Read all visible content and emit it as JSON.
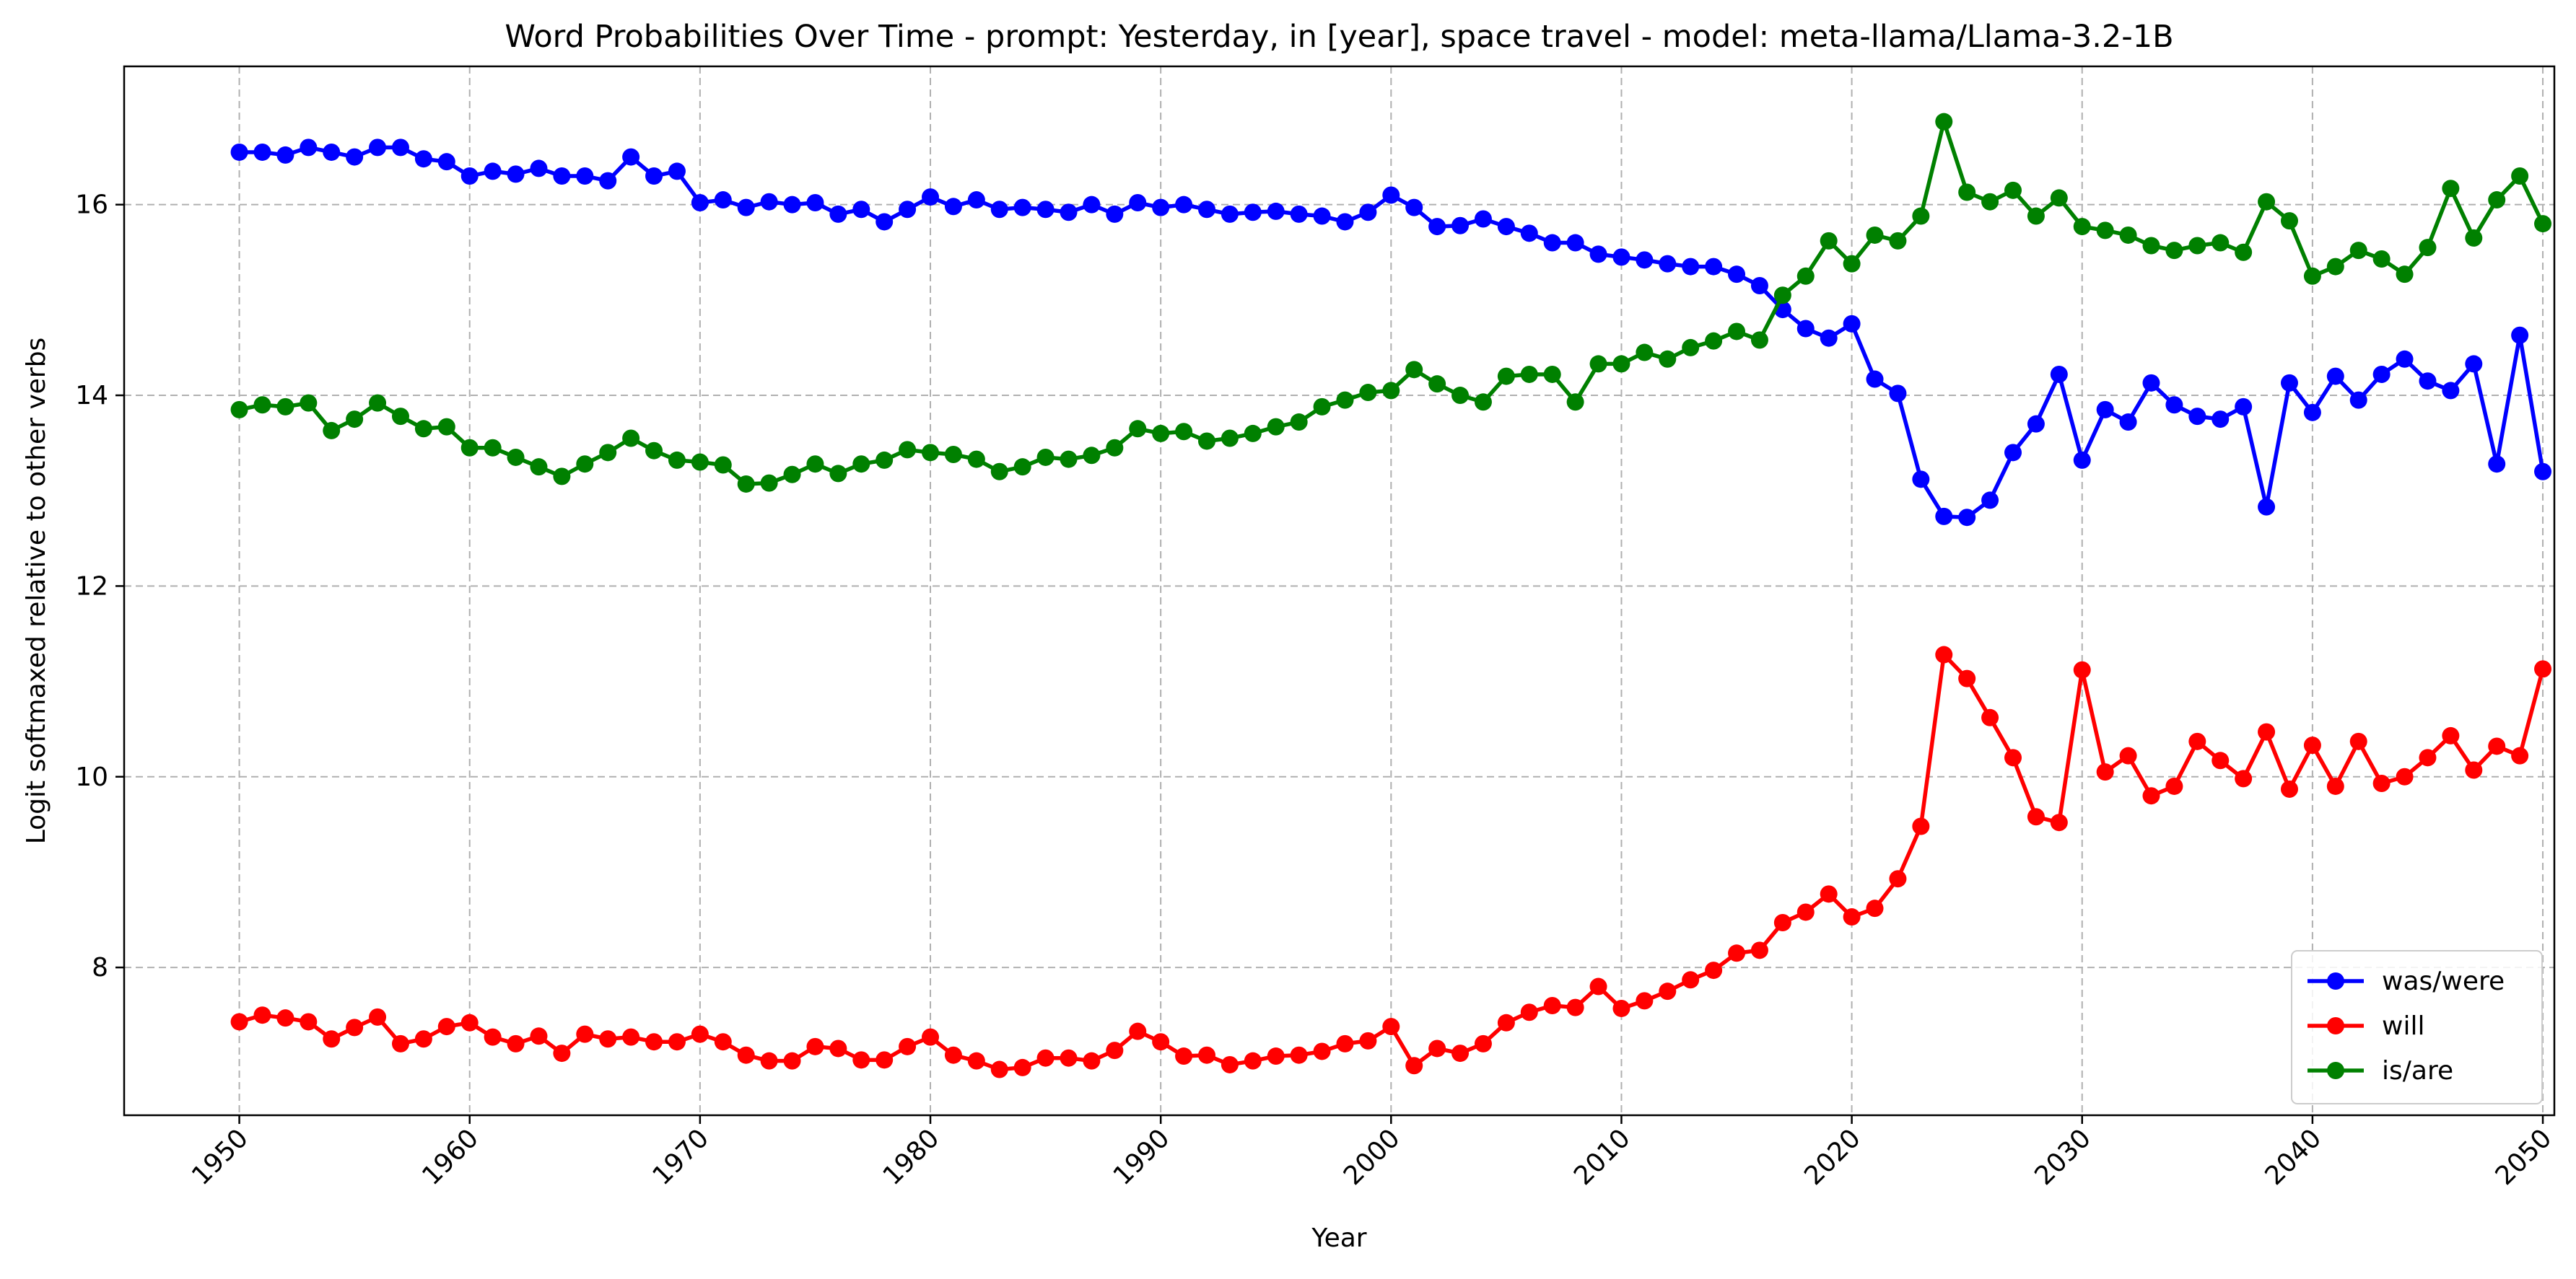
{
  "chart_data": {
    "type": "line",
    "title": "Word Probabilities Over Time - prompt: Yesterday, in [year], space travel - model: meta-llama/Llama-3.2-1B",
    "xlabel": "Year",
    "ylabel": "Logit softmaxed relative to other verbs",
    "xlim": [
      1945,
      2050.5
    ],
    "ylim": [
      6.45,
      17.45
    ],
    "xticks": [
      1950,
      1960,
      1970,
      1980,
      1990,
      2000,
      2010,
      2020,
      2030,
      2040,
      2050
    ],
    "yticks": [
      8,
      10,
      12,
      14,
      16
    ],
    "grid": true,
    "legend_position": "lower-right",
    "x_start": 1950,
    "series": [
      {
        "name": "was/were",
        "color": "#0000ff",
        "values": [
          16.55,
          16.55,
          16.52,
          16.6,
          16.55,
          16.5,
          16.6,
          16.6,
          16.48,
          16.45,
          16.3,
          16.35,
          16.32,
          16.38,
          16.3,
          16.3,
          16.25,
          16.5,
          16.3,
          16.35,
          16.02,
          16.05,
          15.97,
          16.03,
          16.0,
          16.02,
          15.9,
          15.95,
          15.82,
          15.95,
          16.08,
          15.98,
          16.05,
          15.95,
          15.97,
          15.95,
          15.92,
          16.0,
          15.9,
          16.02,
          15.97,
          16.0,
          15.95,
          15.9,
          15.92,
          15.93,
          15.9,
          15.88,
          15.82,
          15.92,
          16.1,
          15.97,
          15.77,
          15.78,
          15.85,
          15.77,
          15.7,
          15.6,
          15.6,
          15.48,
          15.45,
          15.42,
          15.38,
          15.35,
          15.35,
          15.27,
          15.15,
          14.9,
          14.7,
          14.6,
          14.75,
          14.17,
          14.02,
          13.12,
          12.73,
          12.72,
          12.9,
          13.4,
          13.7,
          14.22,
          13.32,
          13.85,
          13.72,
          14.13,
          13.9,
          13.78,
          13.75,
          13.88,
          12.83,
          14.13,
          13.82,
          14.2,
          13.95,
          14.22,
          14.38,
          14.15,
          14.05,
          14.33,
          13.28,
          14.63,
          13.2
        ]
      },
      {
        "name": "will",
        "color": "#ff0000",
        "values": [
          7.43,
          7.5,
          7.47,
          7.43,
          7.25,
          7.37,
          7.48,
          7.2,
          7.25,
          7.38,
          7.42,
          7.27,
          7.2,
          7.28,
          7.1,
          7.3,
          7.25,
          7.27,
          7.22,
          7.22,
          7.3,
          7.22,
          7.08,
          7.02,
          7.02,
          7.17,
          7.15,
          7.03,
          7.03,
          7.17,
          7.27,
          7.08,
          7.02,
          6.93,
          6.95,
          7.05,
          7.05,
          7.02,
          7.13,
          7.33,
          7.22,
          7.07,
          7.08,
          6.98,
          7.02,
          7.07,
          7.08,
          7.12,
          7.2,
          7.23,
          7.38,
          6.97,
          7.15,
          7.1,
          7.2,
          7.42,
          7.53,
          7.6,
          7.58,
          7.8,
          7.57,
          7.65,
          7.75,
          7.87,
          7.97,
          8.15,
          8.18,
          8.47,
          8.58,
          8.77,
          8.53,
          8.62,
          8.93,
          9.48,
          11.28,
          11.03,
          10.62,
          10.2,
          9.58,
          9.52,
          11.12,
          10.05,
          10.22,
          9.8,
          9.9,
          10.37,
          10.17,
          9.98,
          10.47,
          9.87,
          10.33,
          9.9,
          10.37,
          9.93,
          10.0,
          10.2,
          10.43,
          10.07,
          10.32,
          10.22,
          11.13
        ]
      },
      {
        "name": "is/are",
        "color": "#008000",
        "values": [
          13.85,
          13.9,
          13.88,
          13.92,
          13.63,
          13.75,
          13.92,
          13.78,
          13.65,
          13.67,
          13.45,
          13.45,
          13.35,
          13.25,
          13.15,
          13.28,
          13.4,
          13.55,
          13.42,
          13.32,
          13.3,
          13.27,
          13.07,
          13.08,
          13.17,
          13.28,
          13.18,
          13.28,
          13.32,
          13.43,
          13.4,
          13.38,
          13.33,
          13.2,
          13.25,
          13.35,
          13.33,
          13.37,
          13.45,
          13.65,
          13.6,
          13.62,
          13.52,
          13.55,
          13.6,
          13.67,
          13.72,
          13.88,
          13.95,
          14.03,
          14.05,
          14.27,
          14.12,
          14.0,
          13.93,
          14.2,
          14.22,
          14.22,
          13.93,
          14.33,
          14.33,
          14.45,
          14.38,
          14.5,
          14.57,
          14.67,
          14.58,
          15.05,
          15.25,
          15.62,
          15.38,
          15.68,
          15.62,
          15.88,
          16.87,
          16.13,
          16.03,
          16.15,
          15.88,
          16.07,
          15.77,
          15.73,
          15.68,
          15.57,
          15.52,
          15.57,
          15.6,
          15.5,
          16.03,
          15.83,
          15.25,
          15.35,
          15.52,
          15.43,
          15.27,
          15.55,
          16.17,
          15.65,
          16.05,
          16.3,
          15.8
        ]
      }
    ]
  }
}
